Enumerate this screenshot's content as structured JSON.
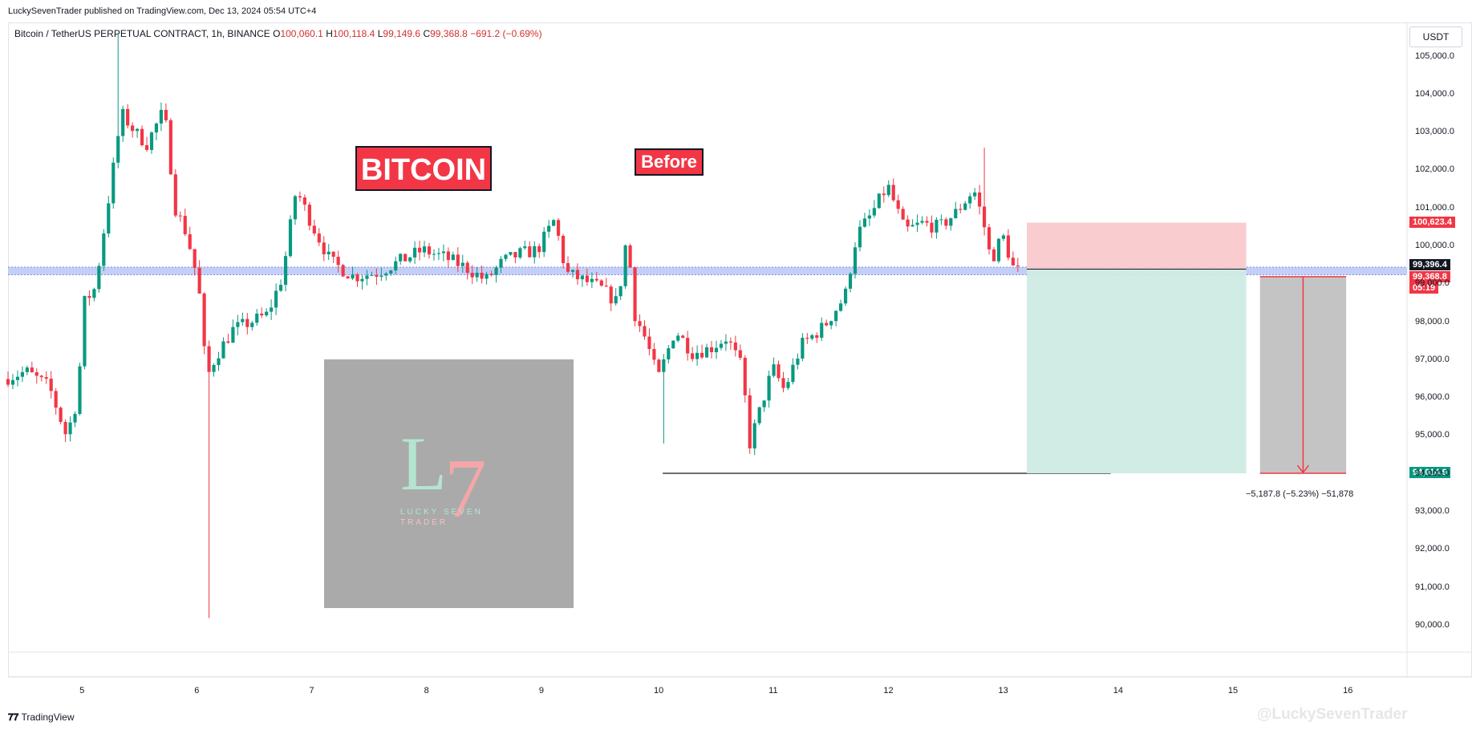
{
  "header": {
    "publish_line": "LuckySevenTrader published on TradingView.com, Dec 13, 2024 05:54 UTC+4"
  },
  "legend": {
    "symbol": "Bitcoin / TetherUS PERPETUAL CONTRACT, 1h, BINANCE",
    "open_label": "O",
    "open": "100,060.1",
    "high_label": "H",
    "high": "100,118.4",
    "low_label": "L",
    "low": "99,149.6",
    "close_label": "C",
    "close": "99,368.8",
    "change": "−691.2 (−0.69%)"
  },
  "currency_button": "USDT",
  "annotations": {
    "title_box": "BITCOIN",
    "before_box": "Before",
    "measure_text": "−5,187.8 (−5.23%) −51,878"
  },
  "logo": {
    "letter_l": "L",
    "letter_7": "7",
    "line1": "LUCKY SEVEN",
    "line2": "TRADER"
  },
  "price_tags": {
    "stop": "100,623.4",
    "entry": "99,396.4",
    "last": "99,368.8",
    "countdown": "05:19",
    "target": "94,014.9"
  },
  "footer": {
    "brand": "TradingView",
    "watermark": "@LuckySevenTrader"
  },
  "colors": {
    "up": "#089981",
    "down": "#f23645",
    "stop_zone": "#f8c8cb",
    "target_zone": "#cfebe4",
    "support_band": "#b5c3f5",
    "measure_box": "#c4c4c4"
  },
  "chart_data": {
    "type": "candlestick",
    "title": "",
    "xlabel": "",
    "ylabel": "",
    "ylim": [
      89300,
      105900
    ],
    "y_ticks": [
      90000,
      91000,
      92000,
      93000,
      94000,
      95000,
      96000,
      97000,
      98000,
      99000,
      100000,
      101000,
      102000,
      103000,
      104000,
      105000
    ],
    "y_tick_labels": [
      "90,000.0",
      "91,000.0",
      "92,000.0",
      "93,000.0",
      "94,000.0",
      "95,000.0",
      "96,000.0",
      "97,000.0",
      "98,000.0",
      "99,000.0",
      "100,000.0",
      "101,000.0",
      "102,000.0",
      "103,000.0",
      "104,000.0",
      "105,000.0"
    ],
    "x_ticks": [
      "5",
      "6",
      "7",
      "8",
      "9",
      "10",
      "11",
      "12",
      "13",
      "14",
      "15",
      "16"
    ],
    "x_tick_days": [
      5,
      6,
      7,
      8,
      9,
      10,
      11,
      12,
      13,
      14,
      15,
      16
    ],
    "xlim_days": [
      4.35,
      16.53
    ],
    "close_path": [
      [
        4.35,
        96500
      ],
      [
        4.55,
        96700
      ],
      [
        4.75,
        96300
      ],
      [
        4.9,
        95000
      ],
      [
        5.0,
        96000
      ],
      [
        5.05,
        98500
      ],
      [
        5.15,
        98900
      ],
      [
        5.28,
        101500
      ],
      [
        5.38,
        103500
      ],
      [
        5.5,
        103000
      ],
      [
        5.6,
        102700
      ],
      [
        5.75,
        103600
      ],
      [
        5.85,
        101000
      ],
      [
        5.95,
        100300
      ],
      [
        6.05,
        99000
      ],
      [
        6.12,
        96500
      ],
      [
        6.2,
        97100
      ],
      [
        6.35,
        97800
      ],
      [
        6.5,
        98000
      ],
      [
        6.65,
        98200
      ],
      [
        6.78,
        99200
      ],
      [
        6.9,
        101500
      ],
      [
        7.05,
        100500
      ],
      [
        7.2,
        99600
      ],
      [
        7.4,
        99200
      ],
      [
        7.6,
        99300
      ],
      [
        7.8,
        99600
      ],
      [
        8.0,
        99900
      ],
      [
        8.2,
        99700
      ],
      [
        8.4,
        99400
      ],
      [
        8.55,
        99100
      ],
      [
        8.7,
        99600
      ],
      [
        8.85,
        99800
      ],
      [
        9.0,
        99900
      ],
      [
        9.15,
        100700
      ],
      [
        9.25,
        99300
      ],
      [
        9.4,
        99100
      ],
      [
        9.55,
        98900
      ],
      [
        9.7,
        98500
      ],
      [
        9.78,
        100300
      ],
      [
        9.85,
        98200
      ],
      [
        9.95,
        97500
      ],
      [
        10.05,
        96500
      ],
      [
        10.2,
        97800
      ],
      [
        10.35,
        97200
      ],
      [
        10.5,
        97300
      ],
      [
        10.65,
        97600
      ],
      [
        10.78,
        96800
      ],
      [
        10.85,
        94800
      ],
      [
        10.95,
        95800
      ],
      [
        11.05,
        96800
      ],
      [
        11.15,
        96200
      ],
      [
        11.3,
        97400
      ],
      [
        11.5,
        97900
      ],
      [
        11.68,
        98700
      ],
      [
        11.78,
        100300
      ],
      [
        11.9,
        100800
      ],
      [
        12.05,
        101600
      ],
      [
        12.2,
        100400
      ],
      [
        12.35,
        100600
      ],
      [
        12.5,
        100500
      ],
      [
        12.65,
        100900
      ],
      [
        12.8,
        101500
      ],
      [
        12.88,
        100700
      ],
      [
        12.95,
        99600
      ],
      [
        13.05,
        100300
      ],
      [
        13.15,
        99370
      ]
    ],
    "support_zone": [
      99250,
      99450
    ],
    "position": {
      "type": "long",
      "entry": 99396.4,
      "stop": 100623.4,
      "target": 94014.9,
      "start_day": 13.22,
      "end_day": 15.13
    },
    "swing_low_line": {
      "price": 94014.9,
      "from_day": 10.05,
      "to_day": 13.95
    },
    "measure": {
      "from_price": 99200,
      "to_price": 94014.9,
      "start_day": 15.25,
      "end_day": 16.0
    }
  }
}
